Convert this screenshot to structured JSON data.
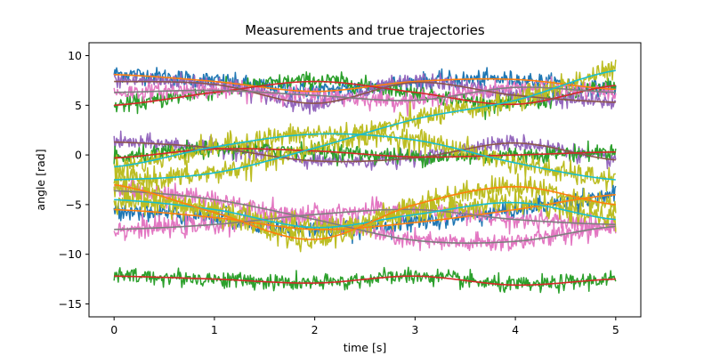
{
  "chart_data": {
    "type": "line",
    "title": "Measurements and true trajectories",
    "xlabel": "time [s]",
    "ylabel": "angle [rad]",
    "xlim": [
      -0.25,
      5.25
    ],
    "ylim": [
      -16.3,
      11.3
    ],
    "xticks": [
      0,
      1,
      2,
      3,
      4,
      5
    ],
    "xtick_labels": [
      "0",
      "1",
      "2",
      "3",
      "4",
      "5"
    ],
    "yticks": [
      -15,
      -10,
      -5,
      0,
      5,
      10
    ],
    "ytick_labels": [
      "−15",
      "−10",
      "−5",
      "0",
      "5",
      "10"
    ],
    "grid": false,
    "legend": "none",
    "x_range": [
      0,
      5
    ],
    "measurements": [
      {
        "color": "#1f77b4",
        "noise": 0.75,
        "keyframes": {
          "t": [
            0,
            1,
            2,
            3,
            4,
            5
          ],
          "y": [
            8.2,
            7.5,
            6.5,
            7.4,
            7.6,
            6.6
          ]
        }
      },
      {
        "color": "#2ca02c",
        "noise": 0.75,
        "keyframes": {
          "t": [
            0,
            1,
            2,
            3,
            4,
            5
          ],
          "y": [
            5.0,
            6.4,
            7.5,
            6.3,
            5.1,
            7.0
          ]
        }
      },
      {
        "color": "#9467bd",
        "noise": 0.75,
        "keyframes": {
          "t": [
            0,
            1,
            2,
            3,
            4,
            5
          ],
          "y": [
            7.5,
            7.2,
            5.2,
            7.4,
            6.0,
            5.3
          ]
        }
      },
      {
        "color": "#e377c2",
        "noise": 0.75,
        "keyframes": {
          "t": [
            0,
            1,
            2,
            3,
            4,
            5
          ],
          "y": [
            6.3,
            6.5,
            6.0,
            5.5,
            6.8,
            6.3
          ]
        }
      },
      {
        "color": "#9467bd",
        "noise": 0.75,
        "keyframes": {
          "t": [
            0,
            1,
            2,
            3,
            4,
            5
          ],
          "y": [
            1.3,
            0.7,
            -0.6,
            -0.3,
            1.2,
            -0.5
          ]
        }
      },
      {
        "color": "#2ca02c",
        "noise": 0.75,
        "keyframes": {
          "t": [
            0,
            1,
            2,
            3,
            4,
            5
          ],
          "y": [
            -0.3,
            0.6,
            0.4,
            -0.2,
            0.0,
            0.3
          ]
        }
      },
      {
        "color": "#bcbd22",
        "noise": 1.0,
        "keyframes": {
          "t": [
            0,
            1,
            2,
            3,
            4,
            5
          ],
          "y": [
            -1.2,
            0.8,
            2.1,
            1.5,
            -0.8,
            -2.5
          ]
        }
      },
      {
        "color": "#bcbd22",
        "noise": 1.0,
        "keyframes": {
          "t": [
            0,
            1,
            2,
            3,
            4,
            5
          ],
          "y": [
            -2.5,
            -1.8,
            0.7,
            3.6,
            5.5,
            8.5
          ]
        }
      },
      {
        "color": "#1f77b4",
        "noise": 0.9,
        "keyframes": {
          "t": [
            0,
            1,
            2,
            3,
            4,
            5
          ],
          "y": [
            -5.5,
            -6.3,
            -7.5,
            -6.8,
            -5.5,
            -4.0
          ]
        }
      },
      {
        "color": "#e377c2",
        "noise": 0.9,
        "keyframes": {
          "t": [
            0,
            1,
            2,
            3,
            4,
            5
          ],
          "y": [
            -3.6,
            -4.5,
            -6.5,
            -8.6,
            -8.7,
            -7.2
          ]
        }
      },
      {
        "color": "#e377c2",
        "noise": 0.9,
        "keyframes": {
          "t": [
            0,
            1,
            2,
            3,
            4,
            5
          ],
          "y": [
            -7.5,
            -7.0,
            -6.0,
            -5.5,
            -6.5,
            -7.0
          ]
        }
      },
      {
        "color": "#bcbd22",
        "noise": 1.0,
        "keyframes": {
          "t": [
            0,
            1,
            2,
            3,
            4,
            5
          ],
          "y": [
            -4.5,
            -5.5,
            -7.3,
            -6.0,
            -4.8,
            -6.5
          ]
        }
      },
      {
        "color": "#bcbd22",
        "noise": 1.0,
        "keyframes": {
          "t": [
            0,
            1,
            2,
            3,
            4,
            5
          ],
          "y": [
            -3.0,
            -5.8,
            -8.5,
            -5.0,
            -3.2,
            -5.0
          ]
        }
      },
      {
        "color": "#2ca02c",
        "noise": 0.75,
        "keyframes": {
          "t": [
            0,
            1,
            2,
            3,
            4,
            5
          ],
          "y": [
            -12.2,
            -12.5,
            -12.9,
            -12.2,
            -13.1,
            -12.5
          ]
        }
      }
    ],
    "true_trajectories": [
      {
        "color": "#ff7f0e",
        "keyframes": {
          "t": [
            0,
            1,
            2,
            3,
            4,
            5
          ],
          "y": [
            8.1,
            7.4,
            6.4,
            7.4,
            7.6,
            6.6
          ]
        }
      },
      {
        "color": "#d62728",
        "keyframes": {
          "t": [
            0,
            1,
            2,
            3,
            4,
            5
          ],
          "y": [
            5.0,
            6.3,
            7.4,
            6.3,
            5.1,
            7.0
          ]
        }
      },
      {
        "color": "#8c564b",
        "keyframes": {
          "t": [
            0,
            1,
            2,
            3,
            4,
            5
          ],
          "y": [
            7.4,
            7.1,
            5.2,
            7.3,
            6.0,
            5.3
          ]
        }
      },
      {
        "color": "#7f7f7f",
        "keyframes": {
          "t": [
            0,
            1,
            2,
            3,
            4,
            5
          ],
          "y": [
            6.3,
            6.5,
            6.0,
            5.5,
            6.8,
            6.3
          ]
        }
      },
      {
        "color": "#8c564b",
        "keyframes": {
          "t": [
            0,
            1,
            2,
            3,
            4,
            5
          ],
          "y": [
            1.3,
            0.7,
            -0.6,
            -0.3,
            1.2,
            -0.5
          ]
        }
      },
      {
        "color": "#d62728",
        "keyframes": {
          "t": [
            0,
            1,
            2,
            3,
            4,
            5
          ],
          "y": [
            -0.3,
            0.6,
            0.4,
            -0.2,
            0.0,
            0.3
          ]
        }
      },
      {
        "color": "#17becf",
        "keyframes": {
          "t": [
            0,
            1,
            2,
            3,
            4,
            5
          ],
          "y": [
            -1.2,
            0.8,
            2.1,
            1.5,
            -0.8,
            -2.5
          ]
        }
      },
      {
        "color": "#17becf",
        "keyframes": {
          "t": [
            0,
            1,
            2,
            3,
            4,
            5
          ],
          "y": [
            -2.5,
            -1.8,
            0.7,
            3.6,
            5.5,
            8.5
          ]
        }
      },
      {
        "color": "#ff7f0e",
        "keyframes": {
          "t": [
            0,
            1,
            2,
            3,
            4,
            5
          ],
          "y": [
            -5.5,
            -6.3,
            -7.5,
            -6.8,
            -5.5,
            -4.0
          ]
        }
      },
      {
        "color": "#7f7f7f",
        "keyframes": {
          "t": [
            0,
            1,
            2,
            3,
            4,
            5
          ],
          "y": [
            -3.6,
            -4.5,
            -6.5,
            -8.6,
            -8.7,
            -7.2
          ]
        }
      },
      {
        "color": "#7f7f7f",
        "keyframes": {
          "t": [
            0,
            1,
            2,
            3,
            4,
            5
          ],
          "y": [
            -7.5,
            -7.0,
            -6.0,
            -5.5,
            -6.5,
            -7.0
          ]
        }
      },
      {
        "color": "#17becf",
        "keyframes": {
          "t": [
            0,
            1,
            2,
            3,
            4,
            5
          ],
          "y": [
            -4.5,
            -5.5,
            -7.3,
            -6.0,
            -4.8,
            -6.5
          ]
        }
      },
      {
        "color": "#ff7f0e",
        "keyframes": {
          "t": [
            0,
            1,
            2,
            3,
            4,
            5
          ],
          "y": [
            -3.0,
            -5.8,
            -8.5,
            -5.0,
            -3.2,
            -5.0
          ]
        }
      },
      {
        "color": "#d62728",
        "keyframes": {
          "t": [
            0,
            1,
            2,
            3,
            4,
            5
          ],
          "y": [
            -12.2,
            -12.5,
            -12.9,
            -12.2,
            -13.1,
            -12.5
          ]
        }
      }
    ]
  }
}
